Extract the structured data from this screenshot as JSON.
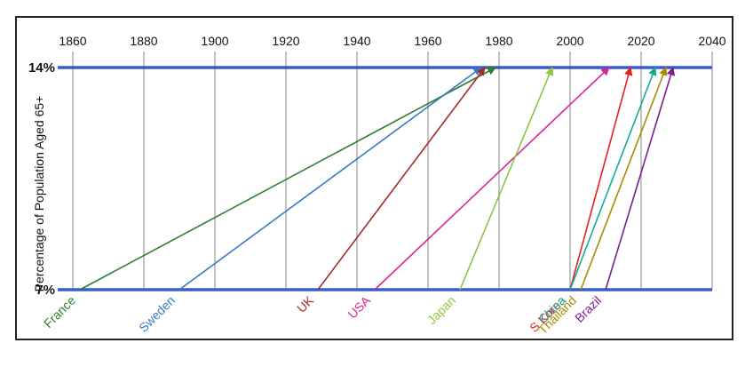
{
  "chart_data": {
    "type": "line",
    "title": "",
    "xlabel": "",
    "ylabel": "Percentage of Population Aged 65+",
    "x_ticks": [
      "1860",
      "1880",
      "1900",
      "1920",
      "1940",
      "1960",
      "1980",
      "2000",
      "2020",
      "2040"
    ],
    "xlim": [
      1860,
      2040
    ],
    "y_levels": [
      "7%",
      "14%"
    ],
    "grid": true,
    "series": [
      {
        "name": "France",
        "start_year": 1862,
        "end_year": 1979,
        "color": "#2e7d32"
      },
      {
        "name": "Sweden",
        "start_year": 1890,
        "end_year": 1975,
        "color": "#3a78c9"
      },
      {
        "name": "UK",
        "start_year": 1929,
        "end_year": 1976,
        "color": "#a52a2a"
      },
      {
        "name": "USA",
        "start_year": 1945,
        "end_year": 2011,
        "color": "#d6249a"
      },
      {
        "name": "Japan",
        "start_year": 1969,
        "end_year": 1995,
        "color": "#8cc63f"
      },
      {
        "name": "S Korea",
        "start_year": 2000,
        "end_year": 2017,
        "color": "#e8211c"
      },
      {
        "name": "China",
        "start_year": 2000,
        "end_year": 2024,
        "color": "#16a99a"
      },
      {
        "name": "Thailand",
        "start_year": 2003,
        "end_year": 2027,
        "color": "#a88b00"
      },
      {
        "name": "Brazil",
        "start_year": 2010,
        "end_year": 2029,
        "color": "#7b1f8f"
      }
    ]
  },
  "colors": {
    "level_line": "#3a5fc4",
    "grid": "#9a9a9a",
    "frame": "#222222"
  }
}
